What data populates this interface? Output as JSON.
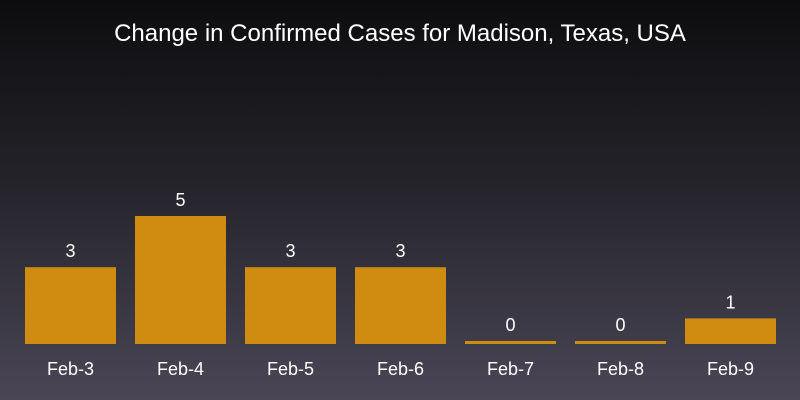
{
  "chart_data": {
    "type": "bar",
    "title": "Change in Confirmed Cases for Madison, Texas, USA",
    "xlabel": "",
    "ylabel": "",
    "categories": [
      "Feb-3",
      "Feb-4",
      "Feb-5",
      "Feb-6",
      "Feb-7",
      "Feb-8",
      "Feb-9"
    ],
    "values": [
      3,
      5,
      3,
      3,
      0,
      0,
      1
    ],
    "ylim": [
      0,
      5
    ],
    "grid": false,
    "bar_color": "#d08c10",
    "text_color": "#ffffff",
    "background_top": "#0d0d0f",
    "background_bottom": "#4a4656"
  }
}
